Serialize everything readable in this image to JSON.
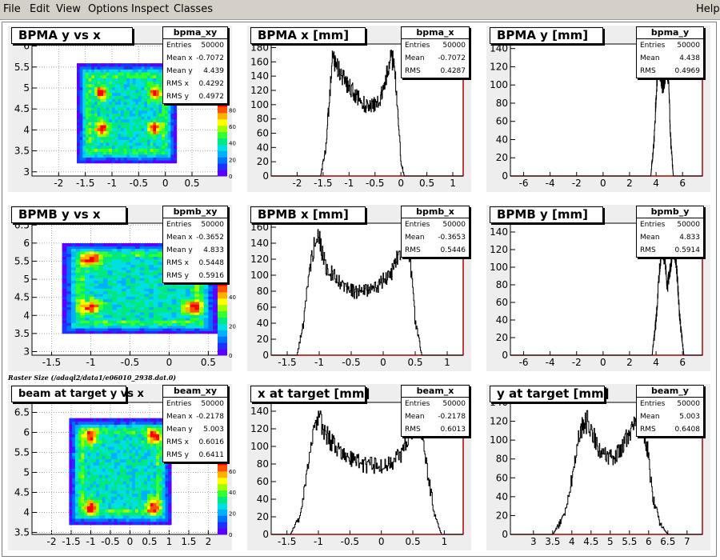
{
  "menu": {
    "items": [
      "File",
      "Edit",
      "View",
      "Options",
      "Inspect",
      "Classes"
    ],
    "help": "Help"
  },
  "caption": "Raster Size (/adaql2/data1/e06010_2938.dat.0)",
  "colors": {
    "accent_line": "#b00000",
    "hist_line": "#000000",
    "pad_bg": "#eeeeee",
    "frame_bg": "#ffffff"
  },
  "pads": [
    {
      "title": "BPMA y vs x",
      "stats": {
        "name": "bpma_xy",
        "rows": [
          [
            "Entries",
            "50000"
          ],
          [
            "Mean x",
            "-0.7072"
          ],
          [
            "Mean y",
            "4.439"
          ],
          [
            "RMS x",
            "0.4292"
          ],
          [
            "RMS y",
            "0.4972"
          ]
        ]
      }
    },
    {
      "title": "BPMA x [mm]",
      "stats": {
        "name": "bpma_x",
        "rows": [
          [
            "Entries",
            "50000"
          ],
          [
            "Mean",
            "-0.7072"
          ],
          [
            "RMS",
            "0.4287"
          ]
        ]
      }
    },
    {
      "title": "BPMA y [mm]",
      "stats": {
        "name": "bpma_y",
        "rows": [
          [
            "Entries",
            "50000"
          ],
          [
            "Mean",
            "4.438"
          ],
          [
            "RMS",
            "0.4969"
          ]
        ]
      }
    },
    {
      "title": "BPMB y vs x",
      "stats": {
        "name": "bpmb_xy",
        "rows": [
          [
            "Entries",
            "50000"
          ],
          [
            "Mean x",
            "-0.3652"
          ],
          [
            "Mean y",
            "4.833"
          ],
          [
            "RMS x",
            "0.5448"
          ],
          [
            "RMS y",
            "0.5916"
          ]
        ]
      }
    },
    {
      "title": "BPMB x [mm]",
      "stats": {
        "name": "bpmb_x",
        "rows": [
          [
            "Entries",
            "50000"
          ],
          [
            "Mean",
            "-0.3653"
          ],
          [
            "RMS",
            "0.5446"
          ]
        ]
      }
    },
    {
      "title": "BPMB y [mm]",
      "stats": {
        "name": "bpmb_y",
        "rows": [
          [
            "Entries",
            "50000"
          ],
          [
            "Mean",
            "4.833"
          ],
          [
            "RMS",
            "0.5914"
          ]
        ]
      }
    },
    {
      "title": "beam at target y vs x",
      "stats": {
        "name": "beam_xy",
        "rows": [
          [
            "Entries",
            "50000"
          ],
          [
            "Mean x",
            "-0.2178"
          ],
          [
            "Mean y",
            "5.003"
          ],
          [
            "RMS x",
            "0.6016"
          ],
          [
            "RMS y",
            "0.6411"
          ]
        ]
      }
    },
    {
      "title": "x at target [mm]",
      "stats": {
        "name": "beam_x",
        "rows": [
          [
            "Entries",
            "50000"
          ],
          [
            "Mean",
            "-0.2178"
          ],
          [
            "RMS",
            "0.6013"
          ]
        ]
      }
    },
    {
      "title": "y at target [mm]",
      "stats": {
        "name": "beam_y",
        "rows": [
          [
            "Entries",
            "50000"
          ],
          [
            "Mean",
            "5.003"
          ],
          [
            "RMS",
            "0.6408"
          ]
        ]
      }
    }
  ],
  "chart_data": [
    {
      "type": "heatmap",
      "title": "BPMA y vs x",
      "xlim": [
        -2.5,
        1.1
      ],
      "ylim": [
        2.9,
        6.05
      ],
      "xticks": [
        "-2",
        "-1.5",
        "-1",
        "-0.5",
        "0",
        "0.5"
      ],
      "yticks": [
        "3",
        "3.5",
        "4",
        "4.5",
        "5",
        "5.5",
        "6"
      ],
      "zticks": [
        "0",
        "20",
        "40",
        "60",
        "80"
      ],
      "grid": true,
      "x_extent": [
        -1.55,
        0.1
      ],
      "y_extent": [
        3.35,
        5.45
      ],
      "peaks": [
        [
          -1.2,
          4.9
        ],
        [
          -0.2,
          4.9
        ],
        [
          -1.2,
          4.05
        ],
        [
          -0.2,
          4.05
        ]
      ]
    },
    {
      "type": "line",
      "title": "BPMA x [mm]",
      "xlim": [
        -2.5,
        1.2
      ],
      "ylim": [
        0,
        185
      ],
      "xticks": [
        "-2",
        "-1.5",
        "-1",
        "-0.5",
        "0",
        "0.5",
        "1"
      ],
      "yticks": [
        "0",
        "20",
        "40",
        "60",
        "80",
        "100",
        "120",
        "140",
        "160",
        "180"
      ],
      "x": [
        -1.55,
        -1.45,
        -1.38,
        -1.32,
        -1.25,
        -1.15,
        -1.0,
        -0.85,
        -0.7,
        -0.55,
        -0.4,
        -0.3,
        -0.2,
        -0.14,
        -0.08,
        0.0,
        0.06
      ],
      "values": [
        0,
        40,
        110,
        165,
        155,
        140,
        125,
        110,
        100,
        98,
        110,
        135,
        165,
        160,
        110,
        20,
        0
      ]
    },
    {
      "type": "line",
      "title": "BPMA y [mm]",
      "xlim": [
        -7,
        7.5
      ],
      "ylim": [
        0,
        145
      ],
      "xticks": [
        "-6",
        "-4",
        "-2",
        "0",
        "2",
        "4",
        "6"
      ],
      "yticks": [
        "0",
        "20",
        "40",
        "60",
        "80",
        "100",
        "120",
        "140"
      ],
      "x": [
        3.6,
        3.85,
        4.05,
        4.2,
        4.35,
        4.5,
        4.65,
        4.8,
        4.95,
        5.1,
        5.3
      ],
      "values": [
        0,
        40,
        100,
        125,
        110,
        100,
        105,
        125,
        105,
        40,
        0
      ]
    },
    {
      "type": "heatmap",
      "title": "BPMB y vs x",
      "xlim": [
        -1.75,
        0.7
      ],
      "ylim": [
        2.9,
        6.55
      ],
      "xticks": [
        "-1.5",
        "-1",
        "-0.5",
        "0",
        "0.5"
      ],
      "yticks": [
        "3",
        "3.5",
        "4",
        "4.5",
        "5",
        "5.5",
        "6",
        "6.5"
      ],
      "zticks": [
        "0",
        "20",
        "40"
      ],
      "grid": true,
      "x_extent": [
        -1.25,
        0.5
      ],
      "y_extent": [
        3.65,
        5.85
      ],
      "peaks": [
        [
          -1.0,
          5.55
        ],
        [
          0.3,
          5.55
        ],
        [
          -1.0,
          4.25
        ],
        [
          0.3,
          4.25
        ]
      ]
    },
    {
      "type": "line",
      "title": "BPMB x [mm]",
      "xlim": [
        -1.75,
        1.25
      ],
      "ylim": [
        0,
        165
      ],
      "xticks": [
        "-1.5",
        "-1",
        "-0.5",
        "0",
        "0.5",
        "1"
      ],
      "yticks": [
        "0",
        "20",
        "40",
        "60",
        "80",
        "100",
        "120",
        "140",
        "160"
      ],
      "x": [
        -1.35,
        -1.25,
        -1.15,
        -1.05,
        -1.0,
        -0.9,
        -0.7,
        -0.5,
        -0.3,
        -0.1,
        0.1,
        0.25,
        0.35,
        0.42,
        0.5,
        0.6
      ],
      "values": [
        0,
        40,
        110,
        150,
        145,
        110,
        90,
        80,
        80,
        85,
        100,
        125,
        150,
        120,
        40,
        0
      ]
    },
    {
      "type": "line",
      "title": "BPMB y [mm]",
      "xlim": [
        -7,
        7.5
      ],
      "ylim": [
        0,
        150
      ],
      "xticks": [
        "-6",
        "-4",
        "-2",
        "0",
        "2",
        "4",
        "6"
      ],
      "yticks": [
        "0",
        "20",
        "40",
        "60",
        "80",
        "100",
        "120",
        "140"
      ],
      "x": [
        3.7,
        4.0,
        4.25,
        4.45,
        4.65,
        4.85,
        5.05,
        5.25,
        5.5,
        5.8,
        6.1
      ],
      "values": [
        0,
        40,
        100,
        125,
        110,
        80,
        95,
        125,
        110,
        40,
        0
      ]
    },
    {
      "type": "heatmap",
      "title": "beam at target y vs x",
      "xlim": [
        -2.5,
        2.4
      ],
      "ylim": [
        3.45,
        6.75
      ],
      "xticks": [
        "-2",
        "-1.5",
        "-1",
        "-0.5",
        "0",
        "0.5",
        "1",
        "1.5",
        "2"
      ],
      "yticks": [
        "3.5",
        "4",
        "4.5",
        "5",
        "5.5",
        "6",
        "6.5"
      ],
      "zticks": [
        "0",
        "20",
        "40",
        "60"
      ],
      "grid": true,
      "x_extent": [
        -1.4,
        0.9
      ],
      "y_extent": [
        3.85,
        6.2
      ],
      "peaks": [
        [
          -1.0,
          5.9
        ],
        [
          0.6,
          5.9
        ],
        [
          -1.0,
          4.15
        ],
        [
          0.6,
          4.15
        ]
      ]
    },
    {
      "type": "line",
      "title": "x at target [mm]",
      "xlim": [
        -1.75,
        1.3
      ],
      "ylim": [
        0,
        150
      ],
      "xticks": [
        "-1.5",
        "-1",
        "-0.5",
        "0",
        "0.5",
        "1"
      ],
      "yticks": [
        "0",
        "20",
        "40",
        "60",
        "80",
        "100",
        "120",
        "140"
      ],
      "x": [
        -1.45,
        -1.3,
        -1.2,
        -1.1,
        -1.0,
        -0.9,
        -0.7,
        -0.5,
        -0.3,
        -0.1,
        0.1,
        0.3,
        0.45,
        0.55,
        0.65,
        0.75,
        0.85,
        0.95
      ],
      "values": [
        0,
        20,
        60,
        110,
        135,
        115,
        95,
        85,
        80,
        78,
        80,
        90,
        115,
        130,
        110,
        60,
        20,
        0
      ]
    },
    {
      "type": "line",
      "title": "y at target [mm]",
      "xlim": [
        2.4,
        7.4
      ],
      "ylim": [
        0,
        140
      ],
      "xticks": [
        "3",
        "3.5",
        "4",
        "4.5",
        "5",
        "5.5",
        "6",
        "6.5",
        "7"
      ],
      "yticks": [
        "0",
        "20",
        "40",
        "60",
        "80",
        "100",
        "120",
        "140"
      ],
      "x": [
        3.5,
        3.8,
        4.0,
        4.2,
        4.4,
        4.6,
        4.8,
        5.0,
        5.2,
        5.4,
        5.6,
        5.8,
        5.95,
        6.1,
        6.3,
        6.5
      ],
      "values": [
        0,
        20,
        60,
        110,
        120,
        100,
        85,
        80,
        85,
        100,
        115,
        125,
        95,
        40,
        10,
        0
      ]
    }
  ]
}
